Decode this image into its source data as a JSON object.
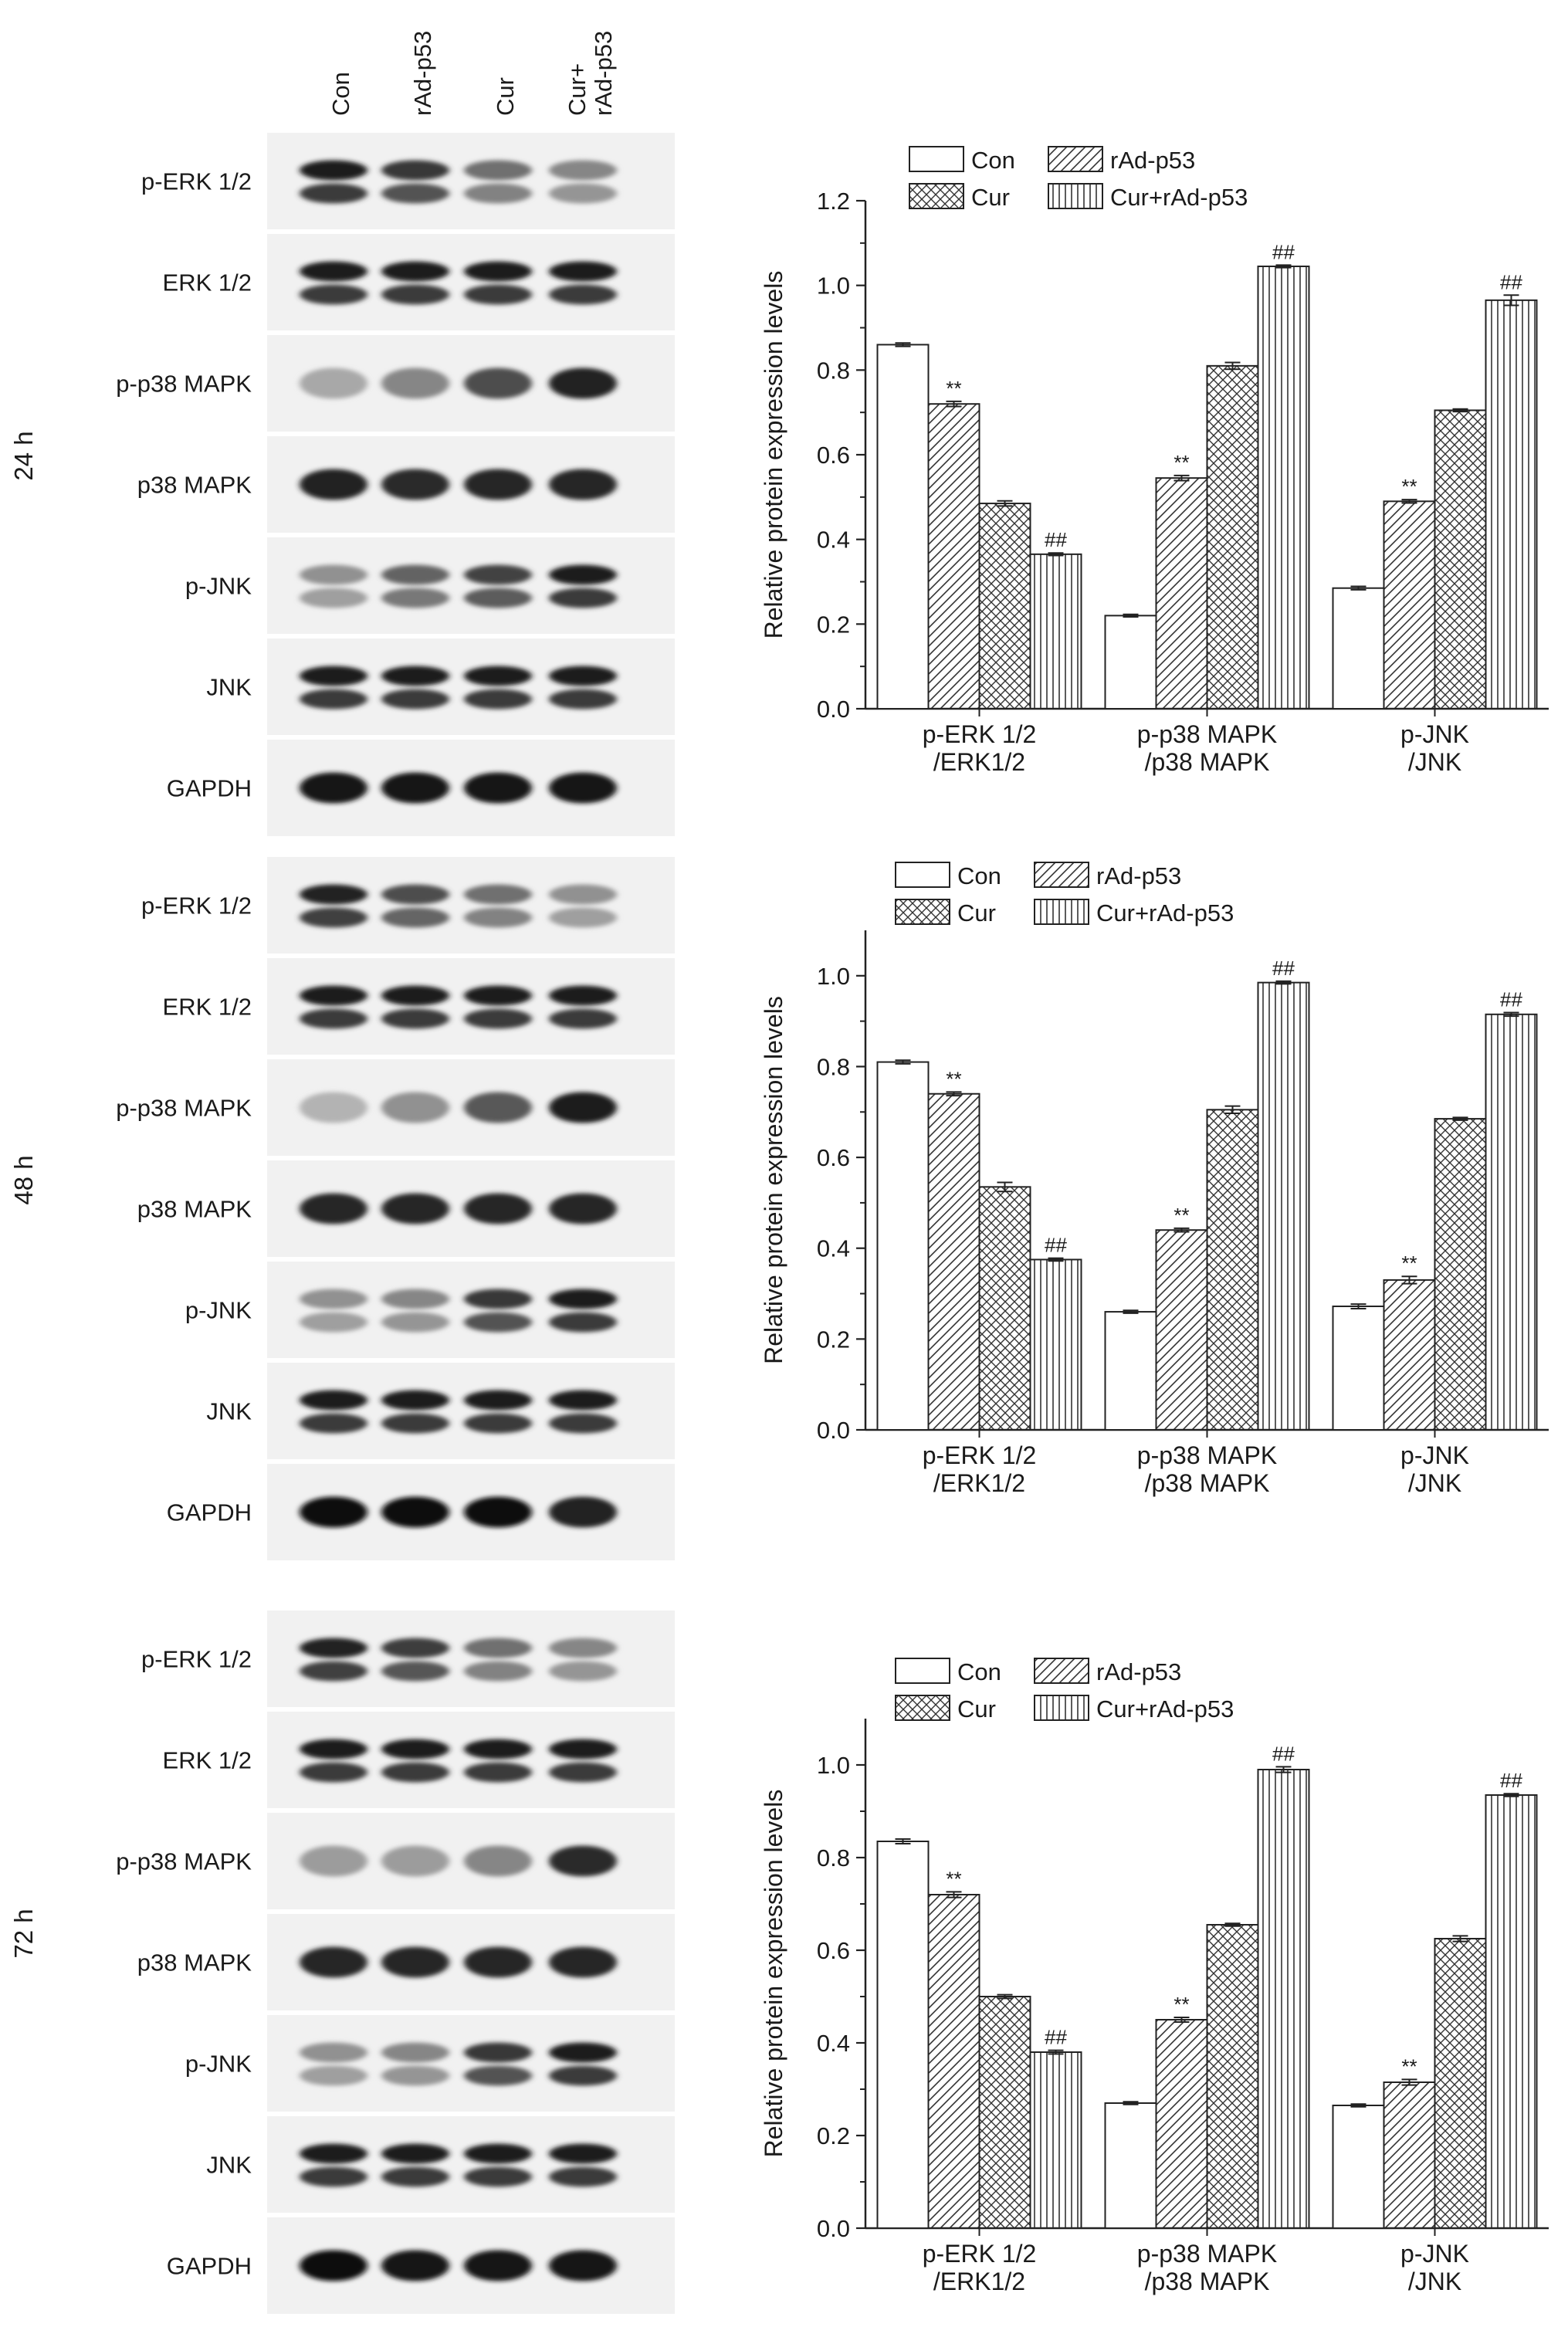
{
  "blot": {
    "lanes": [
      "Con",
      "rAd-p53",
      "Cur",
      "Cur+\nrAd-p53"
    ],
    "panels": [
      {
        "time_label": "24 h",
        "rows": [
          {
            "label": "p-ERK 1/2",
            "bands": 2,
            "intensity": [
              0.92,
              0.8,
              0.55,
              0.45
            ]
          },
          {
            "label": "ERK 1/2",
            "bands": 2,
            "intensity": [
              0.92,
              0.92,
              0.92,
              0.92
            ]
          },
          {
            "label": "p-p38 MAPK",
            "bands": 1,
            "intensity": [
              0.3,
              0.45,
              0.7,
              0.9
            ]
          },
          {
            "label": "p38 MAPK",
            "bands": 1,
            "intensity": [
              0.9,
              0.85,
              0.88,
              0.88
            ]
          },
          {
            "label": "p-JNK",
            "bands": 2,
            "intensity": [
              0.4,
              0.6,
              0.75,
              0.92
            ]
          },
          {
            "label": "JNK",
            "bands": 2,
            "intensity": [
              0.92,
              0.92,
              0.92,
              0.92
            ]
          },
          {
            "label": "GAPDH",
            "bands": 1,
            "intensity": [
              0.95,
              0.95,
              0.95,
              0.95
            ]
          }
        ]
      },
      {
        "time_label": "48 h",
        "rows": [
          {
            "label": "p-ERK 1/2",
            "bands": 2,
            "intensity": [
              0.9,
              0.7,
              0.55,
              0.4
            ]
          },
          {
            "label": "ERK 1/2",
            "bands": 2,
            "intensity": [
              0.92,
              0.92,
              0.92,
              0.92
            ]
          },
          {
            "label": "p-p38 MAPK",
            "bands": 1,
            "intensity": [
              0.25,
              0.4,
              0.65,
              0.92
            ]
          },
          {
            "label": "p38 MAPK",
            "bands": 1,
            "intensity": [
              0.88,
              0.88,
              0.88,
              0.88
            ]
          },
          {
            "label": "p-JNK",
            "bands": 2,
            "intensity": [
              0.4,
              0.45,
              0.8,
              0.92
            ]
          },
          {
            "label": "JNK",
            "bands": 2,
            "intensity": [
              0.92,
              0.92,
              0.92,
              0.92
            ]
          },
          {
            "label": "GAPDH",
            "bands": 1,
            "intensity": [
              0.97,
              0.97,
              0.97,
              0.9
            ]
          }
        ]
      },
      {
        "time_label": "72 h",
        "rows": [
          {
            "label": "p-ERK 1/2",
            "bands": 2,
            "intensity": [
              0.9,
              0.78,
              0.55,
              0.45
            ]
          },
          {
            "label": "ERK 1/2",
            "bands": 2,
            "intensity": [
              0.92,
              0.92,
              0.92,
              0.92
            ]
          },
          {
            "label": "p-p38 MAPK",
            "bands": 1,
            "intensity": [
              0.35,
              0.35,
              0.45,
              0.85
            ]
          },
          {
            "label": "p38 MAPK",
            "bands": 1,
            "intensity": [
              0.88,
              0.88,
              0.88,
              0.88
            ]
          },
          {
            "label": "p-JNK",
            "bands": 2,
            "intensity": [
              0.4,
              0.45,
              0.8,
              0.92
            ]
          },
          {
            "label": "JNK",
            "bands": 2,
            "intensity": [
              0.92,
              0.92,
              0.92,
              0.92
            ]
          },
          {
            "label": "GAPDH",
            "bands": 1,
            "intensity": [
              0.97,
              0.95,
              0.95,
              0.95
            ]
          }
        ]
      }
    ]
  },
  "chart_data": [
    {
      "type": "bar",
      "ylabel": "Relative protein expression levels",
      "ylim": [
        0,
        1.2
      ],
      "yticks": [
        "0.0",
        "0.2",
        "0.4",
        "0.6",
        "0.8",
        "1.0",
        "1.2"
      ],
      "categories": [
        "p-ERK 1/2\n/ERK1/2",
        "p-p38 MAPK\n/p38 MAPK",
        "p-JNK\n/JNK"
      ],
      "legend_position": "top-left",
      "series": [
        {
          "name": "Con",
          "pattern": "none",
          "values": [
            0.86,
            0.22,
            0.285
          ],
          "errors": [
            0.004,
            0.003,
            0.004
          ],
          "marks": [
            "",
            "",
            ""
          ]
        },
        {
          "name": "rAd-p53",
          "pattern": "diagonal",
          "values": [
            0.72,
            0.545,
            0.49
          ],
          "errors": [
            0.006,
            0.006,
            0.004
          ],
          "marks": [
            "**",
            "**",
            "**"
          ]
        },
        {
          "name": "Cur",
          "pattern": "crosshatch",
          "values": [
            0.485,
            0.81,
            0.705
          ],
          "errors": [
            0.006,
            0.008,
            0.003
          ],
          "marks": [
            "",
            "",
            ""
          ]
        },
        {
          "name": "Cur+rAd-p53",
          "pattern": "vertical",
          "values": [
            0.365,
            1.045,
            0.965
          ],
          "errors": [
            0.003,
            0.003,
            0.012
          ],
          "marks": [
            "##",
            "##",
            "##"
          ]
        }
      ]
    },
    {
      "type": "bar",
      "ylabel": "Relative protein expression levels",
      "ylim": [
        0,
        1.1
      ],
      "yticks": [
        "0.0",
        "0.2",
        "0.4",
        "0.6",
        "0.8",
        "1.0"
      ],
      "categories": [
        "p-ERK 1/2\n/ERK1/2",
        "p-p38 MAPK\n/p38 MAPK",
        "p-JNK\n/JNK"
      ],
      "legend_position": "top-left",
      "series": [
        {
          "name": "Con",
          "pattern": "none",
          "values": [
            0.81,
            0.26,
            0.272
          ],
          "errors": [
            0.004,
            0.003,
            0.005
          ],
          "marks": [
            "",
            "",
            ""
          ]
        },
        {
          "name": "rAd-p53",
          "pattern": "diagonal",
          "values": [
            0.74,
            0.44,
            0.33
          ],
          "errors": [
            0.004,
            0.004,
            0.008
          ],
          "marks": [
            "**",
            "**",
            "**"
          ]
        },
        {
          "name": "Cur",
          "pattern": "crosshatch",
          "values": [
            0.535,
            0.705,
            0.685
          ],
          "errors": [
            0.01,
            0.008,
            0.003
          ],
          "marks": [
            "",
            "",
            ""
          ]
        },
        {
          "name": "Cur+rAd-p53",
          "pattern": "vertical",
          "values": [
            0.375,
            0.985,
            0.915
          ],
          "errors": [
            0.003,
            0.003,
            0.004
          ],
          "marks": [
            "##",
            "##",
            "##"
          ]
        }
      ]
    },
    {
      "type": "bar",
      "ylabel": "Relative protein expression levels",
      "ylim": [
        0,
        1.1
      ],
      "yticks": [
        "0.0",
        "0.2",
        "0.4",
        "0.6",
        "0.8",
        "1.0"
      ],
      "categories": [
        "p-ERK 1/2\n/ERK1/2",
        "p-p38 MAPK\n/p38 MAPK",
        "p-JNK\n/JNK"
      ],
      "legend_position": "top-left",
      "series": [
        {
          "name": "Con",
          "pattern": "none",
          "values": [
            0.835,
            0.27,
            0.265
          ],
          "errors": [
            0.005,
            0.003,
            0.003
          ],
          "marks": [
            "",
            "",
            ""
          ]
        },
        {
          "name": "rAd-p53",
          "pattern": "diagonal",
          "values": [
            0.72,
            0.45,
            0.315
          ],
          "errors": [
            0.006,
            0.005,
            0.006
          ],
          "marks": [
            "**",
            "**",
            "**"
          ]
        },
        {
          "name": "Cur",
          "pattern": "crosshatch",
          "values": [
            0.5,
            0.655,
            0.625
          ],
          "errors": [
            0.004,
            0.003,
            0.006
          ],
          "marks": [
            "",
            "",
            ""
          ]
        },
        {
          "name": "Cur+rAd-p53",
          "pattern": "vertical",
          "values": [
            0.38,
            0.99,
            0.935
          ],
          "errors": [
            0.004,
            0.006,
            0.003
          ],
          "marks": [
            "##",
            "##",
            "##"
          ]
        }
      ]
    }
  ]
}
